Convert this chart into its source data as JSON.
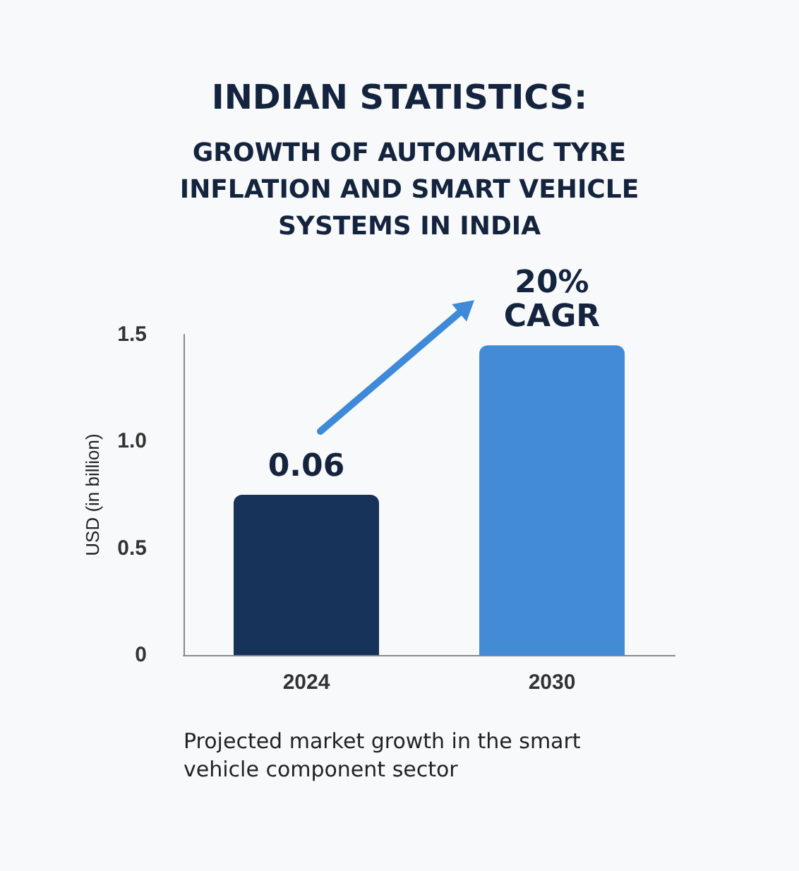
{
  "chart_data": {
    "type": "bar",
    "title": "INDIAN STATISTICS:",
    "subtitle": "GROWTH OF AUTOMATIC TYRE INFLATION AND SMART VEHICLE SYSTEMS IN INDIA",
    "ylabel": "USD (in billion)",
    "categories": [
      "2024",
      "2030"
    ],
    "values": [
      0.75,
      1.45
    ],
    "colors": [
      "#17335a",
      "#448bd6"
    ],
    "ylim": [
      0,
      1.5
    ],
    "yticks": [
      0,
      0.5,
      {
        "value": 1,
        "label": "1.0"
      },
      1.5
    ],
    "grid": false,
    "annotations": [
      {
        "text": "0.06",
        "x": "2024",
        "y": 0.75
      },
      {
        "text": "20% CAGR",
        "x": "2030",
        "y": 1.45
      },
      "Projected market growth in the smart vehicle component sector"
    ]
  }
}
